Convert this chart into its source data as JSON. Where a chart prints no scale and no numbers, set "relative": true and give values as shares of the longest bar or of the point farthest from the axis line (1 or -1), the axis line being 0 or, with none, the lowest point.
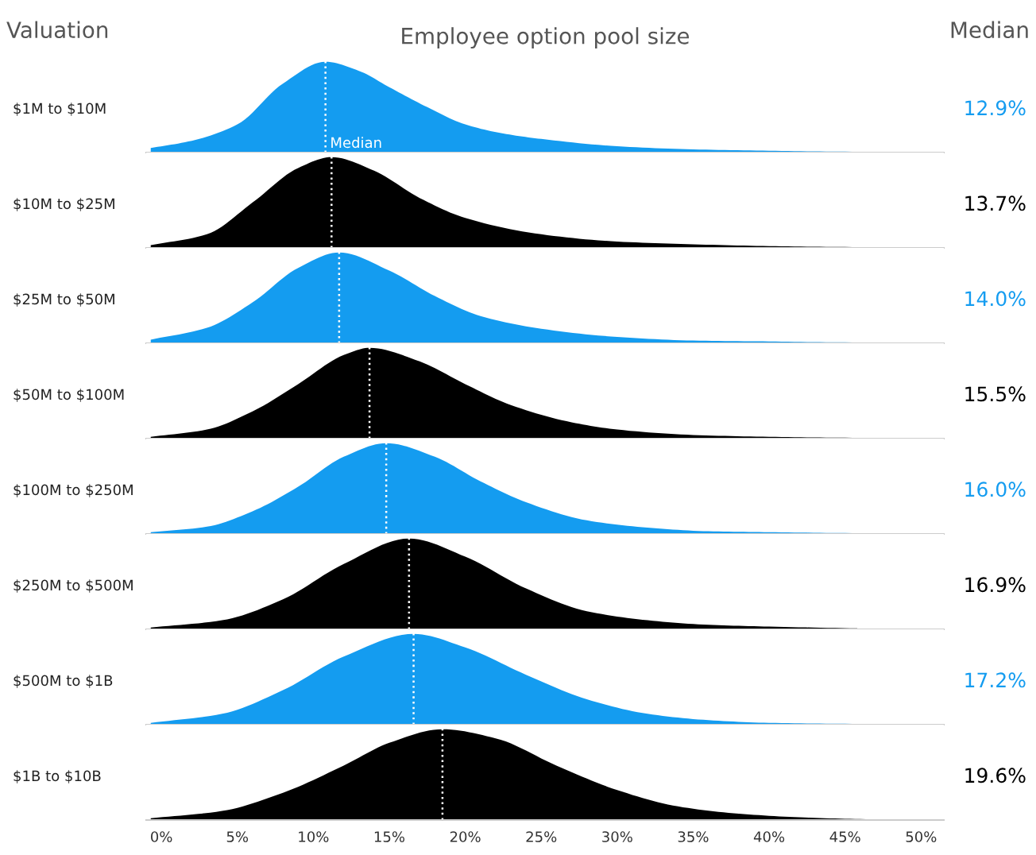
{
  "chart_data": [
    {
      "type": "area",
      "relative": true,
      "title": "Employee option pool size",
      "ylabel": "$1M to $10M",
      "annotations": [
        "Valuation",
        "Median",
        "12.9%"
      ],
      "xlim": [
        -1,
        51.5
      ],
      "xticks": [
        {
          "value": 0,
          "label": null
        },
        {
          "value": 50,
          "label": null
        }
      ],
      "tick_labels": false,
      "ref_lines": [
        {
          "axis": "x",
          "value": 10.8,
          "label": "Median",
          "color": "#ffffff",
          "line_style": "dotted"
        }
      ],
      "series": [
        {
          "color": "#149cf0",
          "x": [
            -0.7,
            2,
            5,
            8,
            10.8,
            13,
            15,
            17.5,
            20,
            22.5,
            25,
            30,
            35,
            40,
            45,
            51
          ],
          "values": [
            0.05,
            0.13,
            0.31,
            0.76,
            1,
            0.9,
            0.72,
            0.5,
            0.31,
            0.21,
            0.15,
            0.07,
            0.035,
            0.02,
            0.01,
            0.008
          ]
        }
      ]
    },
    {
      "type": "area",
      "relative": true,
      "ylabel": "$10M to $25M",
      "annotations": [
        "13.7%"
      ],
      "xlim": [
        -1,
        51.5
      ],
      "xticks": [
        {
          "value": 0,
          "label": null
        },
        {
          "value": 50,
          "label": null
        }
      ],
      "tick_labels": false,
      "ref_lines": [
        {
          "axis": "x",
          "value": 11.2,
          "color": "#ffffff",
          "line_style": "dotted"
        }
      ],
      "series": [
        {
          "color": "#000000",
          "x": [
            -0.7,
            3,
            6,
            9,
            11.2,
            14,
            17,
            20,
            25,
            30,
            35,
            40,
            45,
            51
          ],
          "values": [
            0.03,
            0.15,
            0.5,
            0.88,
            1,
            0.85,
            0.55,
            0.33,
            0.15,
            0.07,
            0.04,
            0.02,
            0.01,
            0.005
          ]
        }
      ]
    },
    {
      "type": "area",
      "relative": true,
      "ylabel": "$25M to $50M",
      "annotations": [
        "14.0%"
      ],
      "xlim": [
        -1,
        51.5
      ],
      "xticks": [
        {
          "value": 0,
          "label": null
        },
        {
          "value": 50,
          "label": null
        }
      ],
      "tick_labels": false,
      "ref_lines": [
        {
          "axis": "x",
          "value": 11.7,
          "color": "#ffffff",
          "line_style": "dotted"
        }
      ],
      "series": [
        {
          "color": "#149cf0",
          "x": [
            -0.7,
            3,
            6,
            9,
            11.7,
            15,
            18,
            21,
            25,
            30,
            35,
            40,
            45,
            51
          ],
          "values": [
            0.04,
            0.17,
            0.45,
            0.83,
            1,
            0.8,
            0.52,
            0.3,
            0.16,
            0.07,
            0.03,
            0.02,
            0.01,
            0.008
          ]
        }
      ]
    },
    {
      "type": "area",
      "relative": true,
      "ylabel": "$50M to $100M",
      "annotations": [
        "15.5%"
      ],
      "xlim": [
        -1,
        51.5
      ],
      "xticks": [
        {
          "value": 0,
          "label": null
        },
        {
          "value": 50,
          "label": null
        }
      ],
      "tick_labels": false,
      "ref_lines": [
        {
          "axis": "x",
          "value": 13.7,
          "color": "#ffffff",
          "line_style": "dotted"
        }
      ],
      "series": [
        {
          "color": "#000000",
          "x": [
            -0.7,
            3,
            6,
            9,
            12,
            13.7,
            17,
            20,
            23,
            27,
            30,
            35,
            40,
            45,
            51
          ],
          "values": [
            0.02,
            0.1,
            0.3,
            0.6,
            0.92,
            1,
            0.85,
            0.6,
            0.37,
            0.18,
            0.1,
            0.04,
            0.02,
            0.01,
            0.005
          ]
        }
      ]
    },
    {
      "type": "area",
      "relative": true,
      "ylabel": "$100M to $250M",
      "annotations": [
        "16.0%"
      ],
      "xlim": [
        -1,
        51.5
      ],
      "xticks": [
        {
          "value": 0,
          "label": null
        },
        {
          "value": 50,
          "label": null
        }
      ],
      "tick_labels": false,
      "ref_lines": [
        {
          "axis": "x",
          "value": 14.8,
          "color": "#ffffff",
          "line_style": "dotted"
        }
      ],
      "series": [
        {
          "color": "#149cf0",
          "x": [
            -0.7,
            3,
            6,
            9,
            12,
            14.8,
            18,
            21,
            24,
            28,
            32,
            36,
            40,
            45,
            51
          ],
          "values": [
            0.02,
            0.08,
            0.25,
            0.52,
            0.85,
            1,
            0.85,
            0.58,
            0.35,
            0.15,
            0.07,
            0.03,
            0.02,
            0.01,
            0.005
          ]
        }
      ]
    },
    {
      "type": "area",
      "relative": true,
      "ylabel": "$250M to $500M",
      "annotations": [
        "16.9%"
      ],
      "xlim": [
        -1,
        51.5
      ],
      "xticks": [
        {
          "value": 0,
          "label": null
        },
        {
          "value": 50,
          "label": null
        }
      ],
      "tick_labels": false,
      "ref_lines": [
        {
          "axis": "x",
          "value": 16.3,
          "color": "#ffffff",
          "line_style": "dotted"
        }
      ],
      "series": [
        {
          "color": "#000000",
          "x": [
            -0.7,
            4,
            8,
            12,
            16.3,
            20,
            24,
            28,
            32,
            36,
            40,
            45.8
          ],
          "values": [
            0.02,
            0.1,
            0.33,
            0.72,
            1,
            0.8,
            0.45,
            0.2,
            0.1,
            0.05,
            0.03,
            0.01
          ]
        }
      ]
    },
    {
      "type": "area",
      "relative": true,
      "ylabel": "$500M to $1B",
      "annotations": [
        "17.2%"
      ],
      "xlim": [
        -1,
        51.5
      ],
      "xticks": [
        {
          "value": 0,
          "label": null
        },
        {
          "value": 50,
          "label": null
        }
      ],
      "tick_labels": false,
      "ref_lines": [
        {
          "axis": "x",
          "value": 16.6,
          "color": "#ffffff",
          "line_style": "dotted"
        }
      ],
      "series": [
        {
          "color": "#149cf0",
          "x": [
            -0.7,
            4,
            8,
            12,
            16.6,
            20,
            24,
            28,
            32,
            36,
            40,
            45,
            51
          ],
          "values": [
            0.02,
            0.12,
            0.38,
            0.75,
            1,
            0.85,
            0.55,
            0.28,
            0.12,
            0.05,
            0.02,
            0.01,
            0.005
          ]
        }
      ]
    },
    {
      "type": "area",
      "relative": true,
      "ylabel": "$1B to $10B",
      "annotations": [
        "19.6%"
      ],
      "xlim": [
        -1,
        51.5
      ],
      "xticks": [
        {
          "value": 0,
          "label": "0%"
        },
        {
          "value": 5,
          "label": "5%"
        },
        {
          "value": 10,
          "label": "10%"
        },
        {
          "value": 15,
          "label": "15%"
        },
        {
          "value": 20,
          "label": "20%"
        },
        {
          "value": 25,
          "label": "25%"
        },
        {
          "value": 30,
          "label": "30%"
        },
        {
          "value": 35,
          "label": "35%"
        },
        {
          "value": 40,
          "label": "40%"
        },
        {
          "value": 45,
          "label": "45%"
        },
        {
          "value": 50,
          "label": "50%"
        }
      ],
      "tick_labels": "x",
      "ref_lines": [
        {
          "axis": "x",
          "value": 18.5,
          "color": "#ffffff",
          "line_style": "dotted"
        }
      ],
      "series": [
        {
          "color": "#000000",
          "x": [
            -0.7,
            4,
            8,
            12,
            15,
            18.5,
            22,
            26,
            30,
            34,
            38,
            42,
            46,
            50.5
          ],
          "values": [
            0.02,
            0.1,
            0.3,
            0.6,
            0.85,
            1,
            0.9,
            0.6,
            0.33,
            0.15,
            0.07,
            0.03,
            0.01,
            0.0
          ]
        }
      ]
    }
  ]
}
